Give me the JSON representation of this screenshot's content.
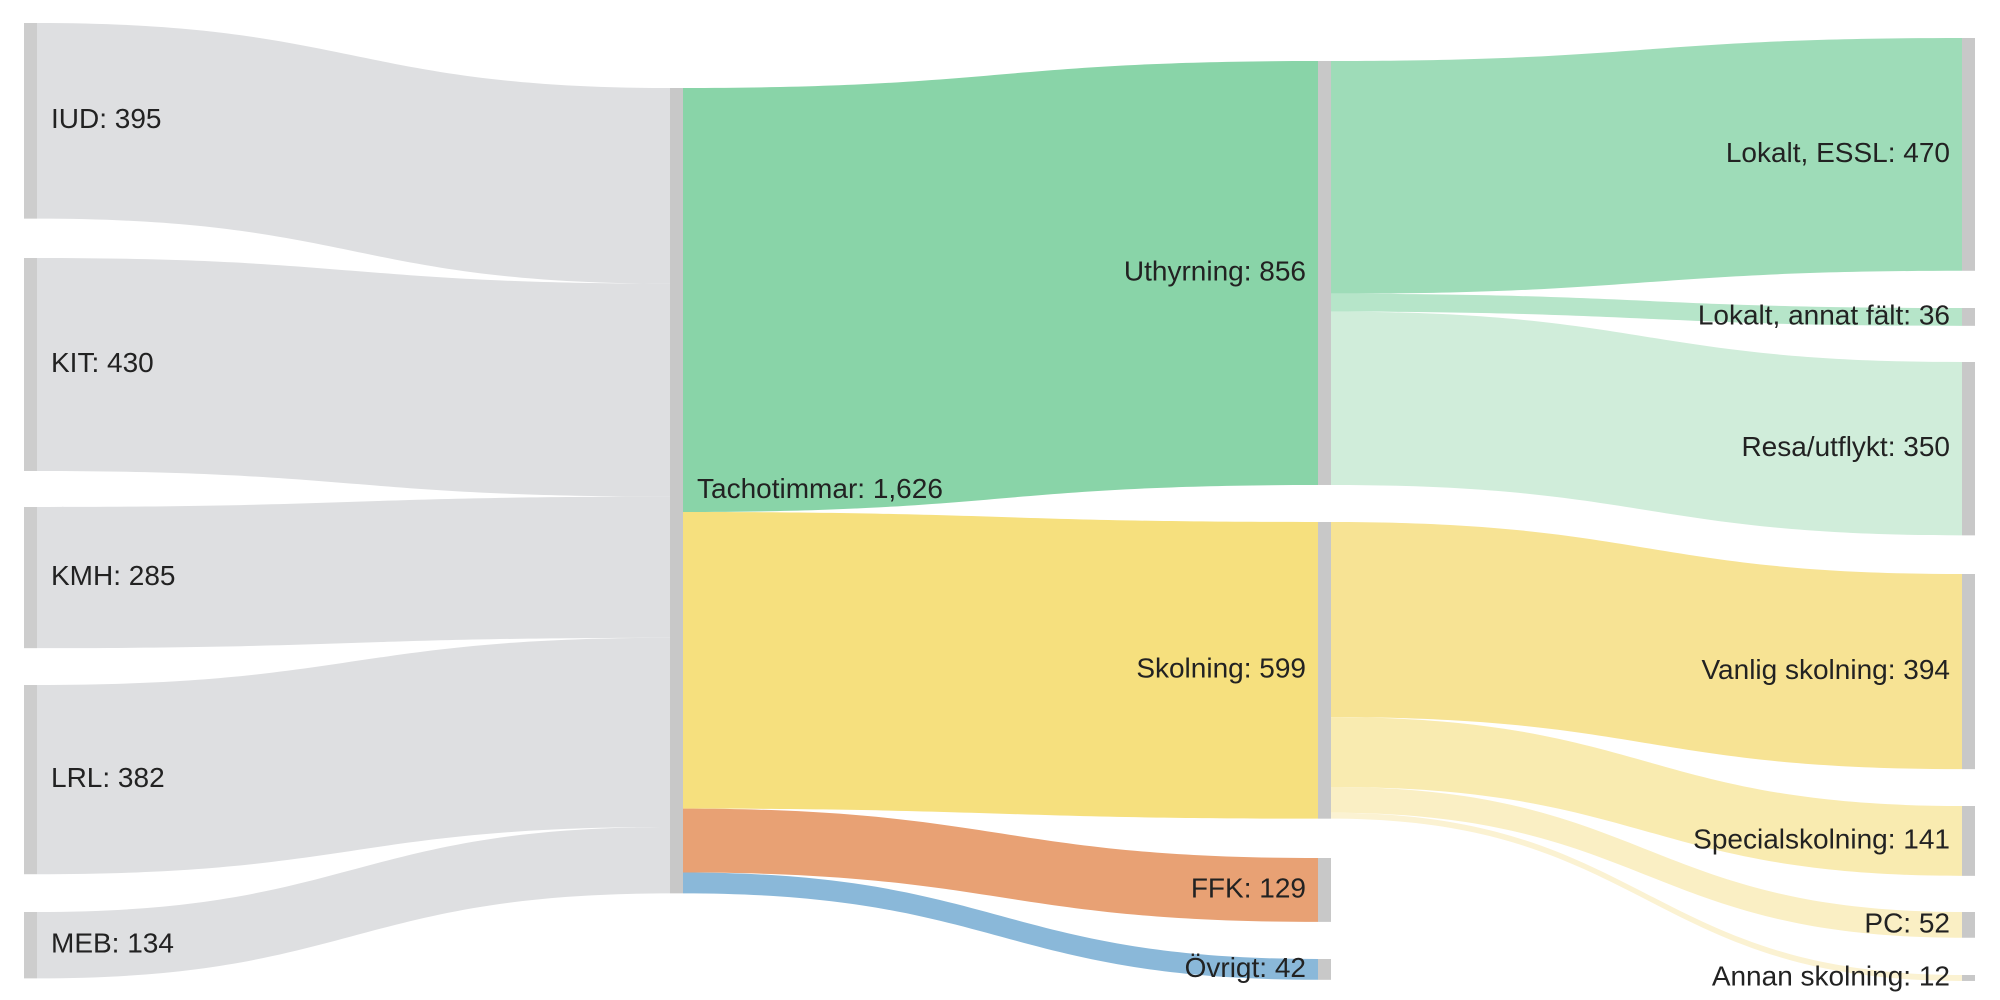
{
  "chart_data": {
    "type": "sankey",
    "title": "",
    "nodes": [
      {
        "id": "IUD",
        "label": "IUD: 395",
        "value": 395,
        "color": "#cdcdcd"
      },
      {
        "id": "KIT",
        "label": "KIT: 430",
        "value": 430,
        "color": "#cdcdcd"
      },
      {
        "id": "KMH",
        "label": "KMH: 285",
        "value": 285,
        "color": "#cdcdcd"
      },
      {
        "id": "LRL",
        "label": "LRL: 382",
        "value": 382,
        "color": "#cdcdcd"
      },
      {
        "id": "MEB",
        "label": "MEB: 134",
        "value": 134,
        "color": "#cdcdcd"
      },
      {
        "id": "Tachotimmar",
        "label": "Tachotimmar: 1,626",
        "value": 1626,
        "color": "#c8c8c8"
      },
      {
        "id": "Uthyrning",
        "label": "Uthyrning: 856",
        "value": 856,
        "color": "#c8c8c8"
      },
      {
        "id": "Skolning",
        "label": "Skolning: 599",
        "value": 599,
        "color": "#c8c8c8"
      },
      {
        "id": "FFK",
        "label": "FFK: 129",
        "value": 129,
        "color": "#c8c8c8"
      },
      {
        "id": "Ovrigt",
        "label": "Övrigt: 42",
        "value": 42,
        "color": "#c8c8c8"
      },
      {
        "id": "LokaltESSL",
        "label": "Lokalt, ESSL: 470",
        "value": 470,
        "color": "#c8c8c8"
      },
      {
        "id": "LokaltAnnat",
        "label": "Lokalt, annat fält: 36",
        "value": 36,
        "color": "#c8c8c8"
      },
      {
        "id": "Resa",
        "label": "Resa/utflykt: 350",
        "value": 350,
        "color": "#c8c8c8"
      },
      {
        "id": "Vanlig",
        "label": "Vanlig skolning: 394",
        "value": 394,
        "color": "#c8c8c8"
      },
      {
        "id": "Special",
        "label": "Specialskolning: 141",
        "value": 141,
        "color": "#c8c8c8"
      },
      {
        "id": "PC",
        "label": "PC: 52",
        "value": 52,
        "color": "#c8c8c8"
      },
      {
        "id": "Annan",
        "label": "Annan skolning: 12",
        "value": 12,
        "color": "#c8c8c8"
      }
    ],
    "links": [
      {
        "source": "IUD",
        "target": "Tachotimmar",
        "value": 395,
        "color": "#dedfe1"
      },
      {
        "source": "KIT",
        "target": "Tachotimmar",
        "value": 430,
        "color": "#dedfe1"
      },
      {
        "source": "KMH",
        "target": "Tachotimmar",
        "value": 285,
        "color": "#dedfe1"
      },
      {
        "source": "LRL",
        "target": "Tachotimmar",
        "value": 382,
        "color": "#dedfe1"
      },
      {
        "source": "MEB",
        "target": "Tachotimmar",
        "value": 134,
        "color": "#dedfe1"
      },
      {
        "source": "Tachotimmar",
        "target": "Uthyrning",
        "value": 856,
        "color": "#89d4a8"
      },
      {
        "source": "Tachotimmar",
        "target": "Skolning",
        "value": 599,
        "color": "#f6e07e"
      },
      {
        "source": "Tachotimmar",
        "target": "FFK",
        "value": 129,
        "color": "#e8a174"
      },
      {
        "source": "Tachotimmar",
        "target": "Ovrigt",
        "value": 42,
        "color": "#8ab8d9"
      },
      {
        "source": "Uthyrning",
        "target": "LokaltESSL",
        "value": 470,
        "color": "#9edcb8"
      },
      {
        "source": "Uthyrning",
        "target": "LokaltAnnat",
        "value": 36,
        "color": "#b6e5c9"
      },
      {
        "source": "Uthyrning",
        "target": "Resa",
        "value": 350,
        "color": "#d0edda"
      },
      {
        "source": "Skolning",
        "target": "Vanlig",
        "value": 394,
        "color": "#f7e394"
      },
      {
        "source": "Skolning",
        "target": "Special",
        "value": 141,
        "color": "#f9ebb0"
      },
      {
        "source": "Skolning",
        "target": "PC",
        "value": 52,
        "color": "#faefc4"
      },
      {
        "source": "Skolning",
        "target": "Annan",
        "value": 12,
        "color": "#fbf2d2"
      }
    ]
  }
}
